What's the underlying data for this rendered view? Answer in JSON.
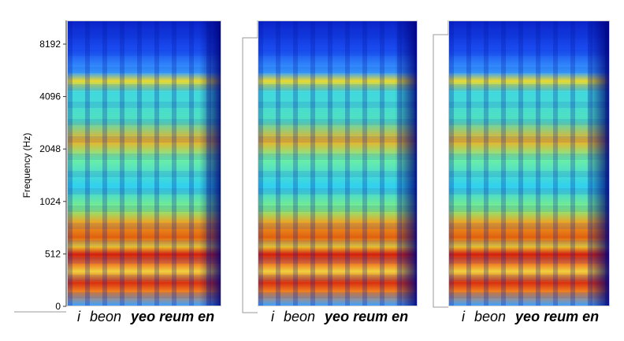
{
  "y_axis": {
    "label": "Frequency (Hz)",
    "ticks": [
      0,
      512,
      1024,
      2048,
      4096,
      8192
    ]
  },
  "panels": [
    {
      "caption": {
        "words": [
          "i",
          "beon"
        ],
        "bold": "yeo reum en"
      }
    },
    {
      "caption": {
        "words": [
          "i",
          "beon"
        ],
        "bold": "yeo reum en"
      }
    },
    {
      "caption": {
        "words": [
          "i",
          "beon"
        ],
        "bold": "yeo reum en"
      }
    }
  ]
}
